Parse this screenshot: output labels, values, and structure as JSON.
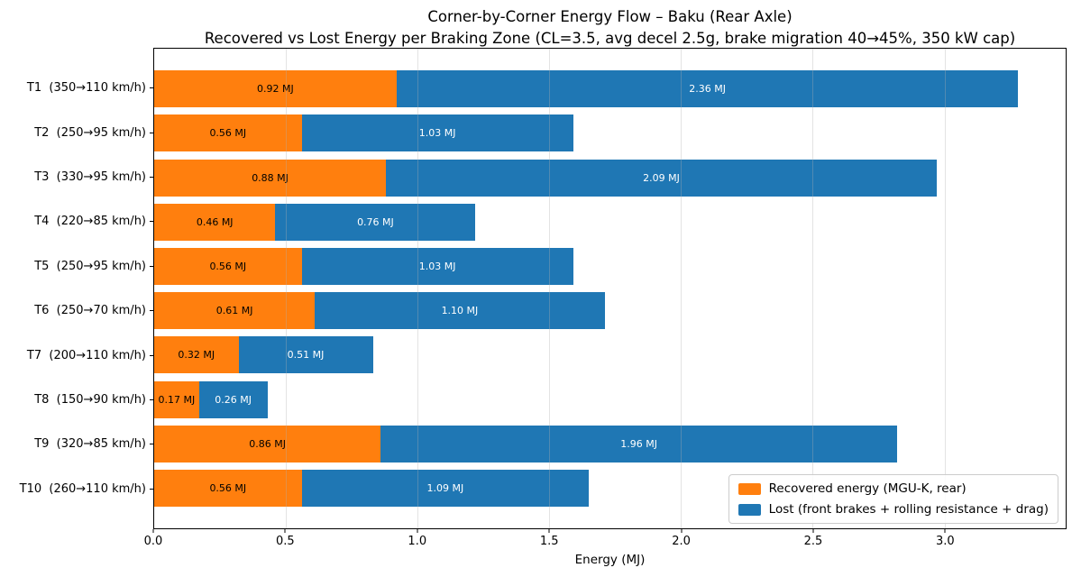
{
  "title": "Corner-by-Corner Energy Flow – Baku (Rear Axle)",
  "subtitle": "Recovered vs Lost Energy per Braking Zone (CL=3.5, avg decel 2.5g, brake migration 40→45%, 350 kW cap)",
  "chart_data": {
    "type": "bar",
    "orientation": "horizontal",
    "stacked": true,
    "title": "Corner-by-Corner Energy Flow – Baku (Rear Axle)",
    "subtitle": "Recovered vs Lost Energy per Braking Zone (CL=3.5, avg decel 2.5g, brake migration 40→45%, 350 kW cap)",
    "categories": [
      "T1  (350→110 km/h)",
      "T2  (250→95 km/h)",
      "T3  (330→95 km/h)",
      "T4  (220→85 km/h)",
      "T5  (250→95 km/h)",
      "T6  (250→70 km/h)",
      "T7  (200→110 km/h)",
      "T8  (150→90 km/h)",
      "T9  (320→85 km/h)",
      "T10  (260→110 km/h)"
    ],
    "series": [
      {
        "name": "Recovered energy (MGU-K, rear)",
        "color": "#ff7f0e",
        "label_color": "#000000",
        "values": [
          0.92,
          0.56,
          0.88,
          0.46,
          0.56,
          0.61,
          0.32,
          0.17,
          0.86,
          0.56
        ]
      },
      {
        "name": "Lost (front brakes + rolling resistance + drag)",
        "color": "#1f77b4",
        "label_color": "#ffffff",
        "values": [
          2.36,
          1.03,
          2.09,
          0.76,
          1.03,
          1.1,
          0.51,
          0.26,
          1.96,
          1.09
        ]
      }
    ],
    "value_unit": "MJ",
    "value_label_format": "{value} MJ",
    "xlabel": "Energy (MJ)",
    "xlim": [
      0,
      3.46
    ],
    "xticks": [
      0.0,
      0.5,
      1.0,
      1.5,
      2.0,
      2.5,
      3.0
    ],
    "xtick_labels": [
      "0.0",
      "0.5",
      "1.0",
      "1.5",
      "2.0",
      "2.5",
      "3.0"
    ],
    "grid": true,
    "grid_axis": "x",
    "legend_position": "lower right",
    "background_color": "#ffffff",
    "spine_color": "#000000"
  }
}
